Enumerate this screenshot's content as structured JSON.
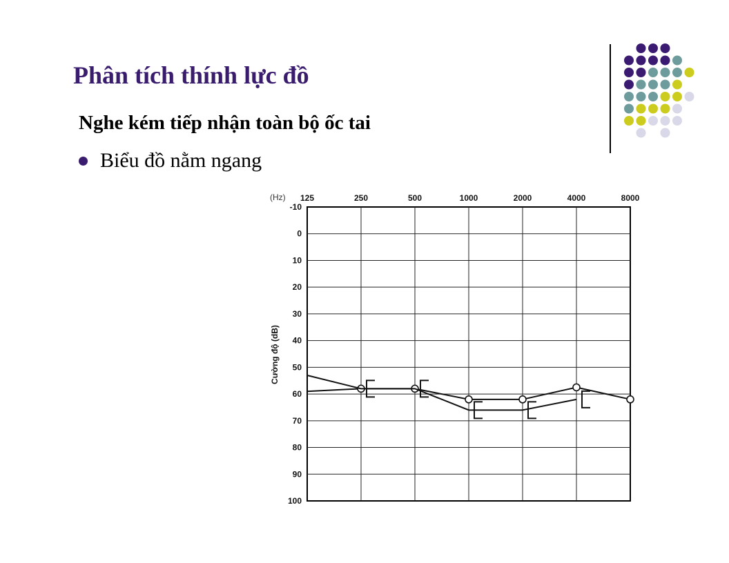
{
  "slide": {
    "title": "Phân tích thính lực đồ",
    "subtitle": "Nghe kém tiếp nhận toàn bộ ốc tai",
    "bullet": "Biểu đồ nằm ngang"
  },
  "colors": {
    "title": "#3a1c6e",
    "dot_purple": "#3b1a72",
    "dot_teal": "#6e9b9b",
    "dot_olive": "#cccc1e",
    "dot_lavender": "#d8d8e8"
  },
  "chart_data": {
    "type": "line",
    "xlabel": "(Hz)",
    "ylabel": "Cường độ (dB)",
    "x_categories": [
      "125",
      "250",
      "500",
      "1000",
      "2000",
      "4000",
      "8000"
    ],
    "y_ticks": [
      -10,
      0,
      10,
      20,
      30,
      40,
      50,
      60,
      70,
      80,
      90,
      100
    ],
    "ylim": [
      -10,
      100
    ],
    "y_inverted": true,
    "grid": true,
    "series": [
      {
        "marker": "circle",
        "points": [
          {
            "x": "125",
            "y": 59
          },
          {
            "x": "250",
            "y": 58
          },
          {
            "x": "500",
            "y": 58
          },
          {
            "x": "1000",
            "y": 62
          },
          {
            "x": "2000",
            "y": 62
          },
          {
            "x": "4000",
            "y": 57.5
          },
          {
            "x": "8000",
            "y": 62
          }
        ]
      },
      {
        "marker": "bracket",
        "points": [
          {
            "x": "125",
            "y": 53
          },
          {
            "x": "250",
            "y": 58
          },
          {
            "x": "500",
            "y": 58
          },
          {
            "x": "1000",
            "y": 66
          },
          {
            "x": "2000",
            "y": 66
          },
          {
            "x": "4000",
            "y": 62
          }
        ]
      }
    ]
  }
}
